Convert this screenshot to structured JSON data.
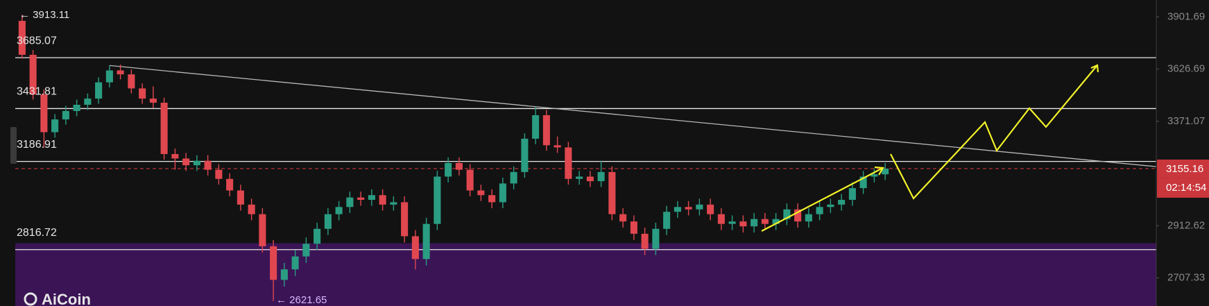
{
  "chart_data": {
    "type": "candlestick",
    "log_scale": true,
    "grid": false,
    "up_color": "#2a9d82",
    "down_color": "#e0474f",
    "open": [
      3880,
      3700,
      3500,
      3320,
      3380,
      3420,
      3450,
      3480,
      3560,
      3620,
      3600,
      3530,
      3480,
      3460,
      3220,
      3200,
      3170,
      3190,
      3150,
      3110,
      3060,
      3000,
      2960,
      2830,
      2700,
      2740,
      2790,
      2840,
      2900,
      2960,
      2990,
      3030,
      3020,
      3040,
      3000,
      3010,
      2870,
      2780,
      2920,
      3120,
      3180,
      3150,
      3060,
      3040,
      3010,
      3090,
      3140,
      3290,
      3400,
      3260,
      3250,
      3110,
      3120,
      3100,
      3140,
      2960,
      2930,
      2880,
      2820,
      2900,
      2970,
      2990,
      2980,
      3000,
      2960,
      2920,
      2930,
      2910,
      2940,
      2920,
      2940,
      2980,
      2930,
      2960,
      2990,
      3000,
      3020,
      3070,
      3120,
      3130
    ],
    "high": [
      3913.11,
      3725,
      3525,
      3405,
      3445,
      3475,
      3505,
      3585,
      3645,
      3650,
      3625,
      3555,
      3540,
      3485,
      3245,
      3225,
      3215,
      3215,
      3175,
      3135,
      3085,
      3025,
      2985,
      2855,
      2765,
      2815,
      2865,
      2925,
      2985,
      3015,
      3055,
      3055,
      3065,
      3065,
      3035,
      3035,
      2895,
      2945,
      3145,
      3205,
      3205,
      3175,
      3085,
      3065,
      3115,
      3165,
      3315,
      3440,
      3425,
      3300,
      3275,
      3145,
      3145,
      3190,
      3165,
      2985,
      2955,
      2905,
      2925,
      2995,
      3015,
      3015,
      3025,
      3025,
      2985,
      2955,
      2955,
      2965,
      2965,
      2965,
      3005,
      3005,
      2985,
      3015,
      3025,
      3045,
      3095,
      3145,
      3155,
      3180
    ],
    "low": [
      3680,
      3475,
      3250,
      3295,
      3355,
      3395,
      3425,
      3455,
      3535,
      3575,
      3505,
      3455,
      3435,
      3195,
      3150,
      3145,
      3145,
      3125,
      3085,
      3035,
      2975,
      2935,
      2805,
      2621.65,
      2675,
      2715,
      2765,
      2815,
      2875,
      2935,
      2965,
      2995,
      2995,
      2975,
      2975,
      2845,
      2740,
      2755,
      2895,
      3095,
      3125,
      3035,
      3015,
      2985,
      2985,
      3065,
      3115,
      3265,
      3235,
      3225,
      3085,
      3085,
      3075,
      3075,
      2935,
      2905,
      2855,
      2795,
      2795,
      2875,
      2945,
      2955,
      2955,
      2935,
      2895,
      2895,
      2885,
      2885,
      2895,
      2895,
      2915,
      2905,
      2905,
      2935,
      2965,
      2975,
      2995,
      3045,
      3095,
      3105
    ],
    "close": [
      3700,
      3500,
      3320,
      3380,
      3420,
      3450,
      3480,
      3560,
      3620,
      3600,
      3530,
      3480,
      3460,
      3220,
      3200,
      3170,
      3190,
      3150,
      3110,
      3060,
      3000,
      2960,
      2830,
      2700,
      2740,
      2790,
      2840,
      2900,
      2960,
      2990,
      3030,
      3020,
      3040,
      3000,
      3010,
      2870,
      2780,
      2920,
      3120,
      3180,
      3150,
      3060,
      3040,
      3010,
      3090,
      3140,
      3290,
      3400,
      3260,
      3250,
      3110,
      3120,
      3100,
      3140,
      2960,
      2930,
      2880,
      2820,
      2900,
      2970,
      2990,
      2980,
      3000,
      2960,
      2920,
      2930,
      2910,
      2940,
      2920,
      2940,
      2980,
      2930,
      2960,
      2990,
      3000,
      3020,
      3070,
      3120,
      3130,
      3155.16
    ],
    "ylim": [
      2603,
      3995
    ],
    "yticks": [
      3901.69,
      3626.69,
      3371.07,
      2912.62,
      2707.33
    ],
    "levels": [
      3685.07,
      3431.81,
      3186.91,
      2816.72
    ],
    "level_color": "#e8e8e8",
    "zone": {
      "from": 2842,
      "color": "#3b1456"
    },
    "trendline": {
      "x": [
        8,
        104
      ],
      "y": [
        3645,
        3163
      ],
      "color": "#b8b8b8"
    },
    "last_price": 3155.16,
    "countdown": "02:14:54",
    "last_price_color": "#c9363b",
    "annotations": [
      {
        "text": "← 3913.11"
      },
      {
        "text": "← 2621.65"
      }
    ],
    "watermark": "AiCoin"
  }
}
